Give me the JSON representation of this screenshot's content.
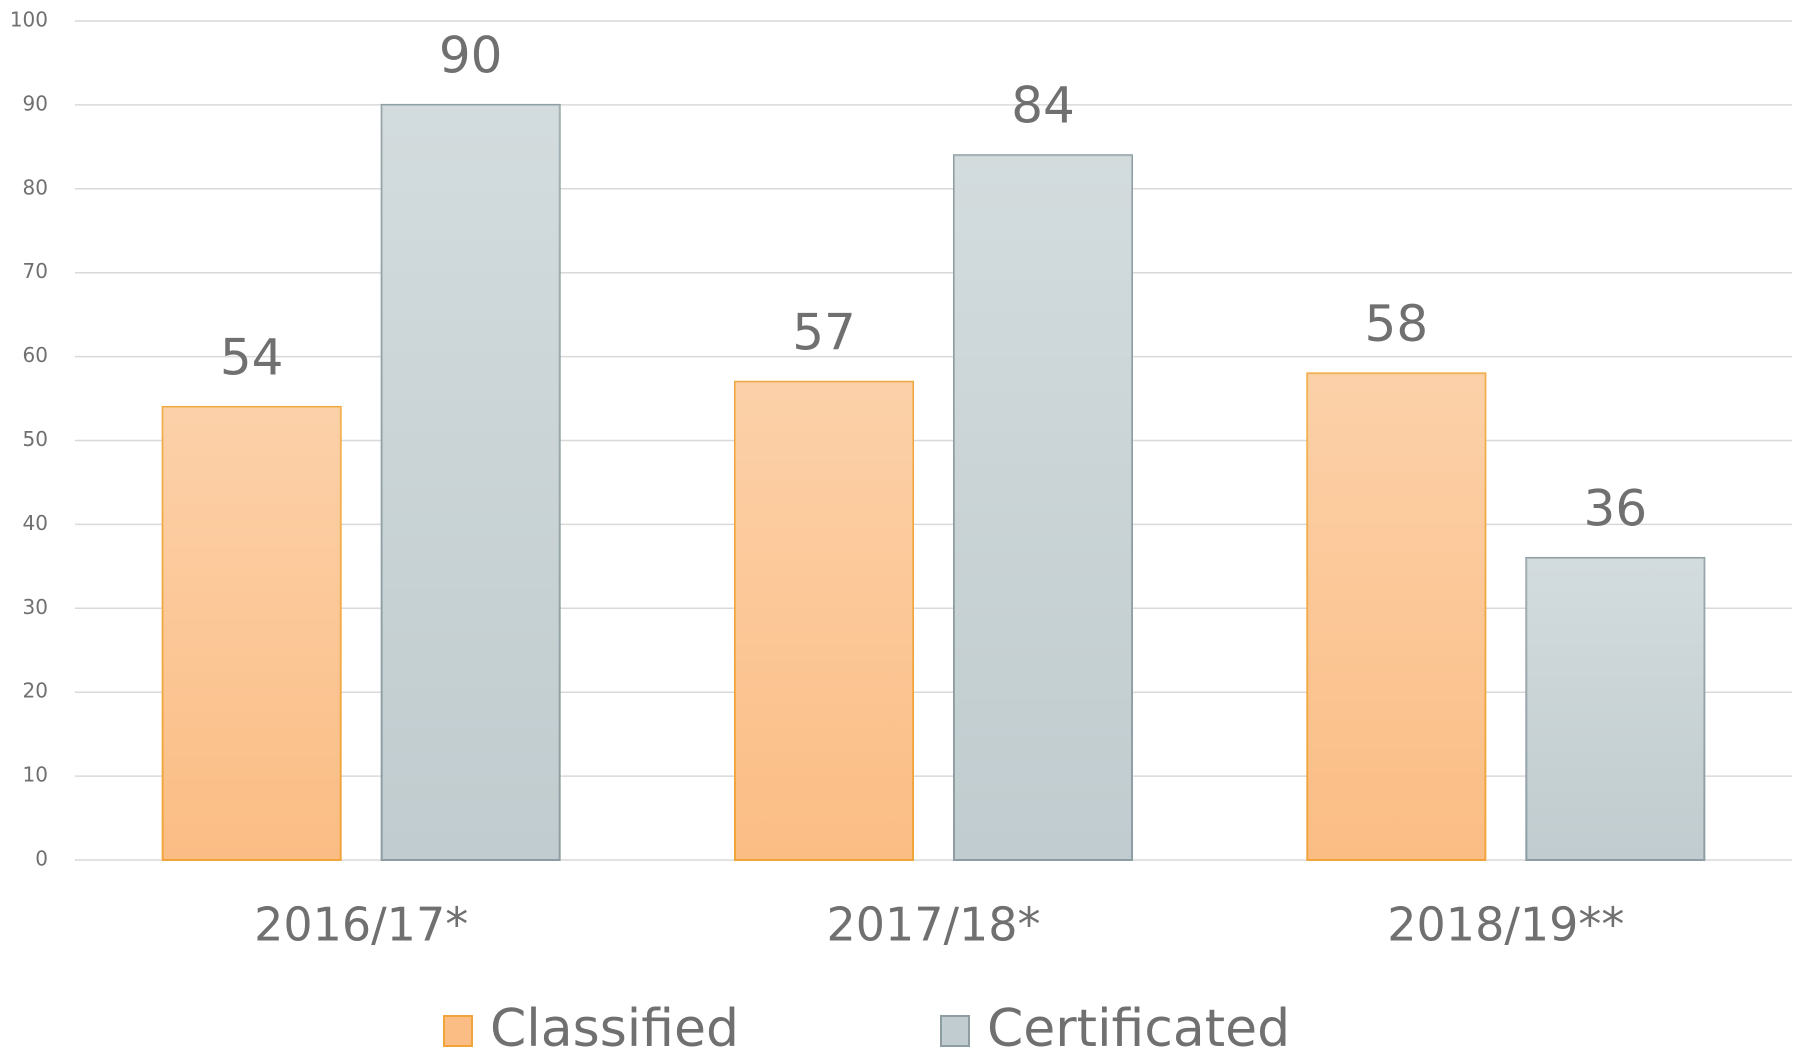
{
  "chart_data": {
    "type": "bar",
    "categories": [
      "2016/17*",
      "2017/18*",
      "2018/19**"
    ],
    "series": [
      {
        "name": "Classified",
        "color": "#fbbd84",
        "edge_color": "#f0a43a",
        "values": [
          54,
          57,
          58
        ]
      },
      {
        "name": "Certificated",
        "color": "#c0cccf",
        "edge_color": "#8d9da2",
        "values": [
          90,
          84,
          36
        ]
      }
    ],
    "ylim": [
      0,
      100
    ],
    "yticks": [
      0,
      10,
      20,
      30,
      40,
      50,
      60,
      70,
      80,
      90,
      100
    ],
    "grid": true,
    "legend": "bottom"
  }
}
